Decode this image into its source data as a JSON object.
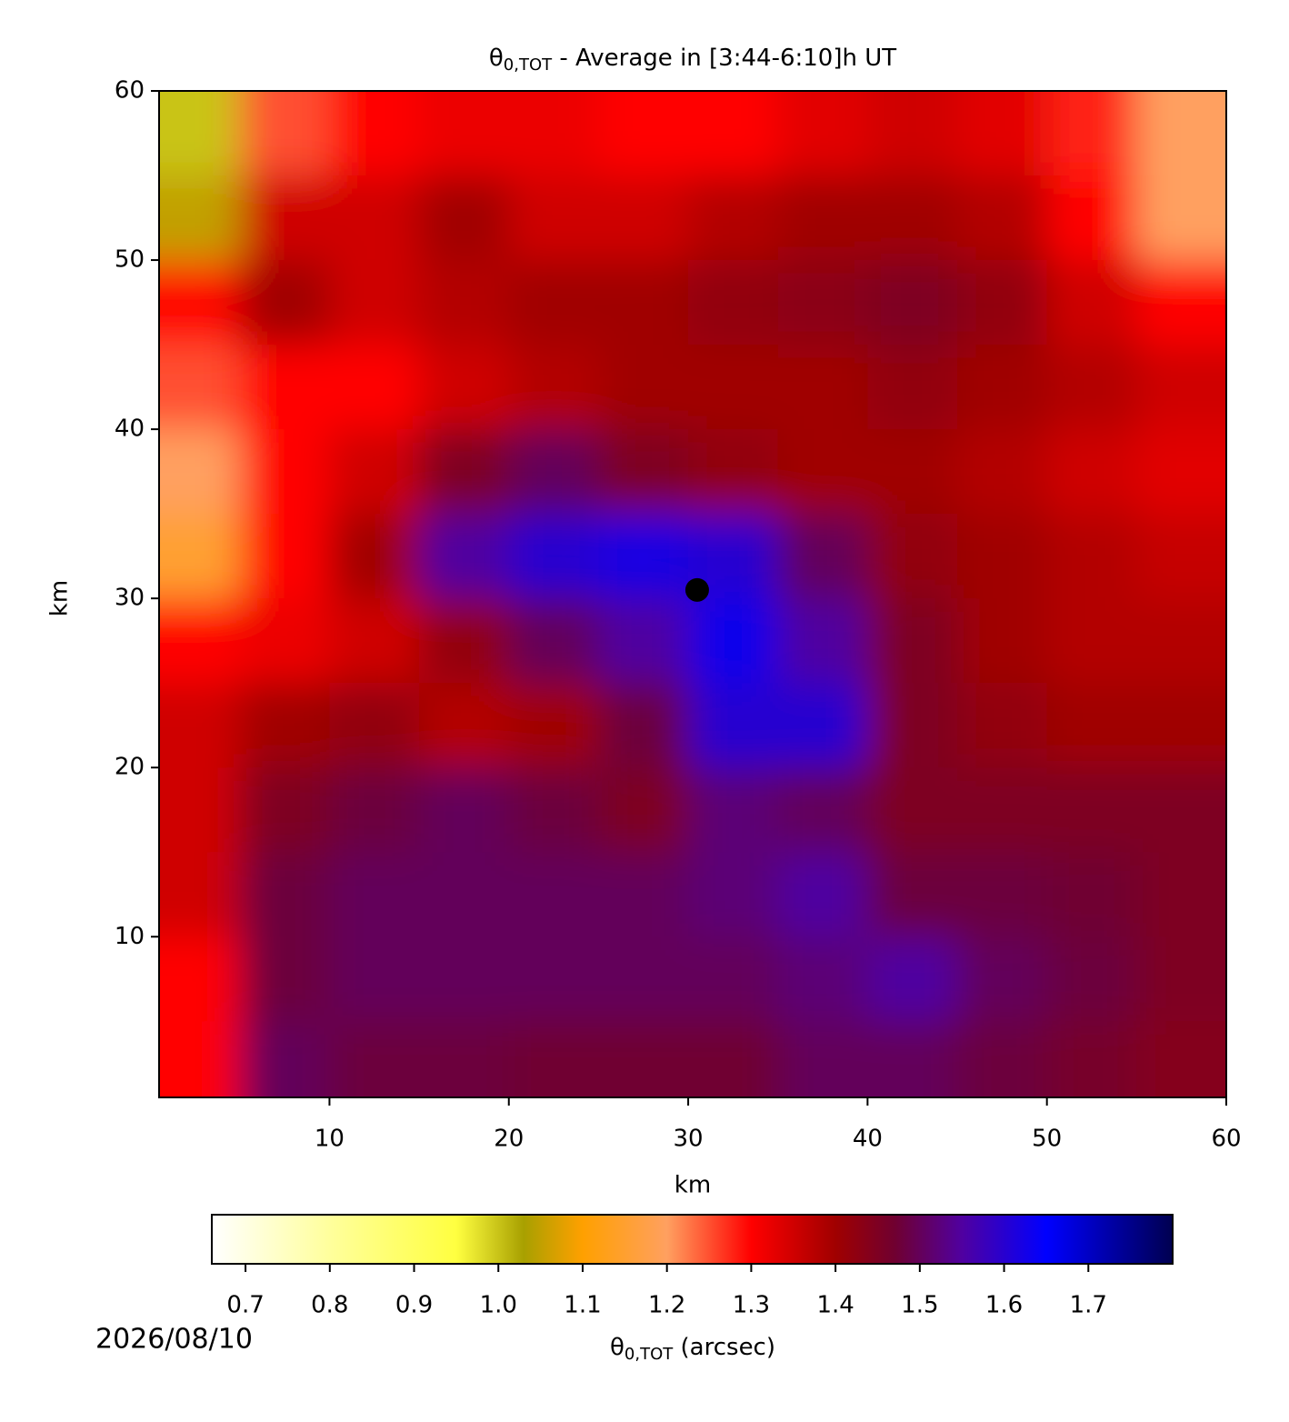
{
  "chart_data": {
    "type": "heatmap",
    "title": {
      "symbol": "θ",
      "subscript": "0,TOT",
      "text": " - Average in [3:44-6:10]h UT"
    },
    "xlabel": "km",
    "ylabel": "km",
    "x": [
      2.5,
      7.5,
      12.5,
      17.5,
      22.5,
      27.5,
      32.5,
      37.5,
      42.5,
      47.5,
      52.5,
      57.5
    ],
    "y": [
      57.5,
      52.5,
      47.5,
      42.5,
      37.5,
      32.5,
      27.5,
      22.5,
      17.5,
      12.5,
      7.5,
      2.5
    ],
    "z": [
      [
        1.0,
        1.25,
        1.3,
        1.32,
        1.32,
        1.3,
        1.3,
        1.33,
        1.35,
        1.33,
        1.28,
        1.2
      ],
      [
        1.05,
        1.35,
        1.35,
        1.4,
        1.35,
        1.35,
        1.38,
        1.4,
        1.4,
        1.38,
        1.3,
        1.2
      ],
      [
        1.3,
        1.4,
        1.35,
        1.38,
        1.4,
        1.4,
        1.42,
        1.43,
        1.45,
        1.42,
        1.35,
        1.3
      ],
      [
        1.25,
        1.3,
        1.3,
        1.35,
        1.38,
        1.4,
        1.4,
        1.4,
        1.42,
        1.4,
        1.38,
        1.35
      ],
      [
        1.2,
        1.3,
        1.35,
        1.45,
        1.5,
        1.45,
        1.42,
        1.4,
        1.4,
        1.38,
        1.35,
        1.33
      ],
      [
        1.15,
        1.3,
        1.4,
        1.55,
        1.6,
        1.62,
        1.6,
        1.5,
        1.42,
        1.4,
        1.38,
        1.36
      ],
      [
        1.3,
        1.32,
        1.35,
        1.42,
        1.5,
        1.55,
        1.63,
        1.55,
        1.45,
        1.4,
        1.38,
        1.38
      ],
      [
        1.35,
        1.4,
        1.42,
        1.38,
        1.4,
        1.48,
        1.6,
        1.6,
        1.45,
        1.42,
        1.4,
        1.4
      ],
      [
        1.35,
        1.45,
        1.48,
        1.5,
        1.48,
        1.45,
        1.52,
        1.5,
        1.45,
        1.45,
        1.45,
        1.45
      ],
      [
        1.35,
        1.48,
        1.5,
        1.5,
        1.5,
        1.5,
        1.52,
        1.55,
        1.48,
        1.48,
        1.47,
        1.45
      ],
      [
        1.3,
        1.48,
        1.5,
        1.5,
        1.5,
        1.5,
        1.5,
        1.52,
        1.55,
        1.5,
        1.48,
        1.45
      ],
      [
        1.3,
        1.5,
        1.48,
        1.48,
        1.47,
        1.47,
        1.47,
        1.5,
        1.5,
        1.48,
        1.46,
        1.44
      ]
    ],
    "xlim": [
      0.5,
      60
    ],
    "ylim": [
      0.5,
      60
    ],
    "xticks": [
      10,
      20,
      30,
      40,
      50,
      60
    ],
    "yticks": [
      10,
      20,
      30,
      40,
      50,
      60
    ],
    "marker": {
      "x": 30.5,
      "y": 30.5,
      "color": "#000000"
    },
    "colorbar": {
      "label": {
        "symbol": "θ",
        "subscript": "0,TOT",
        "text": " (arcsec)"
      },
      "range": [
        0.66,
        1.8
      ],
      "ticks": [
        0.7,
        0.8,
        0.9,
        {
          "value": 1,
          "label": "1.0"
        },
        1.1,
        1.2,
        1.3,
        1.4,
        1.5,
        1.6,
        1.7
      ],
      "colormap": [
        {
          "value": 0.66,
          "color": "#ffffff"
        },
        {
          "value": 0.8,
          "color": "#ffff9c"
        },
        {
          "value": 0.95,
          "color": "#ffff40"
        },
        {
          "value": 1.03,
          "color": "#a8a000"
        },
        {
          "value": 1.1,
          "color": "#ffa000"
        },
        {
          "value": 1.2,
          "color": "#ffa060"
        },
        {
          "value": 1.3,
          "color": "#ff0000"
        },
        {
          "value": 1.4,
          "color": "#a00000"
        },
        {
          "value": 1.47,
          "color": "#700030"
        },
        {
          "value": 1.55,
          "color": "#5000a0"
        },
        {
          "value": 1.65,
          "color": "#0000ff"
        },
        {
          "value": 1.8,
          "color": "#000050"
        }
      ]
    },
    "date": "2026/08/10"
  }
}
